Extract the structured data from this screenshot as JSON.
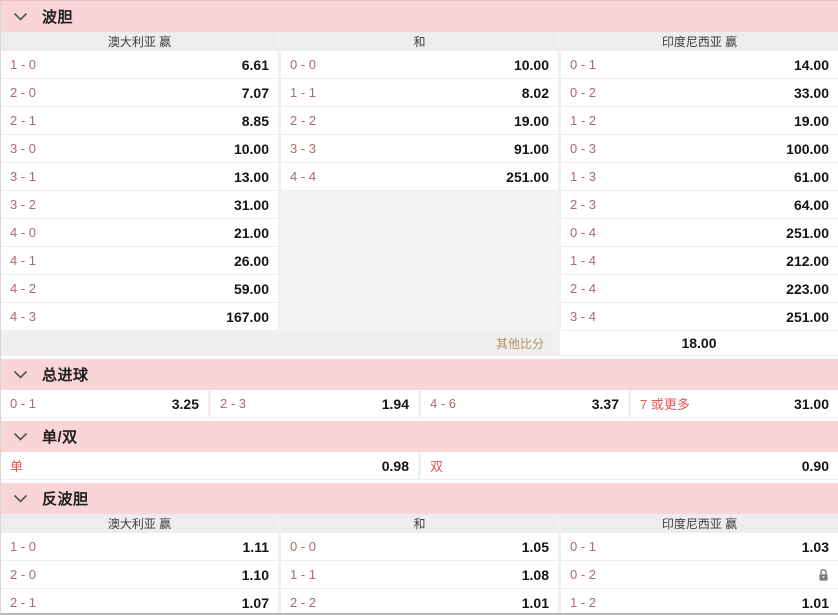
{
  "colors": {
    "section_header_bg": "#f9d5d7",
    "column_header_bg": "#ededed",
    "score_text": "#aa6b6e",
    "accent_red": "#e05b52",
    "other_label_text": "#b3925e",
    "odds_text": "#151515"
  },
  "sections": {
    "correct_score": {
      "title": "波胆",
      "columns": [
        "澳大利亚 赢",
        "和",
        "印度尼西亚 赢"
      ],
      "rows": [
        [
          {
            "s": "1 - 0",
            "o": "6.61"
          },
          {
            "s": "0 - 0",
            "o": "10.00"
          },
          {
            "s": "0 - 1",
            "o": "14.00"
          }
        ],
        [
          {
            "s": "2 - 0",
            "o": "7.07"
          },
          {
            "s": "1 - 1",
            "o": "8.02"
          },
          {
            "s": "0 - 2",
            "o": "33.00"
          }
        ],
        [
          {
            "s": "2 - 1",
            "o": "8.85"
          },
          {
            "s": "2 - 2",
            "o": "19.00"
          },
          {
            "s": "1 - 2",
            "o": "19.00"
          }
        ],
        [
          {
            "s": "3 - 0",
            "o": "10.00"
          },
          {
            "s": "3 - 3",
            "o": "91.00"
          },
          {
            "s": "0 - 3",
            "o": "100.00"
          }
        ],
        [
          {
            "s": "3 - 1",
            "o": "13.00"
          },
          {
            "s": "4 - 4",
            "o": "251.00"
          },
          {
            "s": "1 - 3",
            "o": "61.00"
          }
        ],
        [
          {
            "s": "3 - 2",
            "o": "31.00"
          },
          null,
          {
            "s": "2 - 3",
            "o": "64.00"
          }
        ],
        [
          {
            "s": "4 - 0",
            "o": "21.00"
          },
          null,
          {
            "s": "0 - 4",
            "o": "251.00"
          }
        ],
        [
          {
            "s": "4 - 1",
            "o": "26.00"
          },
          null,
          {
            "s": "1 - 4",
            "o": "212.00"
          }
        ],
        [
          {
            "s": "4 - 2",
            "o": "59.00"
          },
          null,
          {
            "s": "2 - 4",
            "o": "223.00"
          }
        ],
        [
          {
            "s": "4 - 3",
            "o": "167.00"
          },
          null,
          {
            "s": "3 - 4",
            "o": "251.00"
          }
        ]
      ],
      "other_row": {
        "label": "其他比分",
        "odds": "18.00"
      }
    },
    "total_goals": {
      "title": "总进球",
      "cells": [
        {
          "label": "0 - 1",
          "odds": "3.25",
          "accent": false
        },
        {
          "label": "2 - 3",
          "odds": "1.94",
          "accent": false
        },
        {
          "label": "4 - 6",
          "odds": "3.37",
          "accent": false
        },
        {
          "label": "7 或更多",
          "odds": "31.00",
          "accent": true
        }
      ]
    },
    "odd_even": {
      "title": "单/双",
      "cells": [
        {
          "label": "单",
          "odds": "0.98",
          "accent": true
        },
        {
          "label": "双",
          "odds": "0.90",
          "accent": true
        }
      ]
    },
    "reverse_correct_score": {
      "title": "反波胆",
      "columns": [
        "澳大利亚 赢",
        "和",
        "印度尼西亚 赢"
      ],
      "rows": [
        [
          {
            "s": "1 - 0",
            "o": "1.11"
          },
          {
            "s": "0 - 0",
            "o": "1.05"
          },
          {
            "s": "0 - 1",
            "o": "1.03"
          }
        ],
        [
          {
            "s": "2 - 0",
            "o": "1.10"
          },
          {
            "s": "1 - 1",
            "o": "1.08"
          },
          {
            "s": "0 - 2",
            "o": "",
            "locked": true
          }
        ],
        [
          {
            "s": "2 - 1",
            "o": "1.07"
          },
          {
            "s": "2 - 2",
            "o": "1.01"
          },
          {
            "s": "1 - 2",
            "o": "1.01"
          }
        ]
      ]
    }
  }
}
